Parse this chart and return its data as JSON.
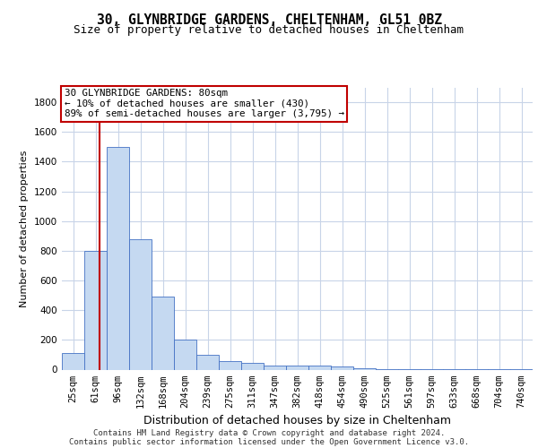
{
  "title1": "30, GLYNBRIDGE GARDENS, CHELTENHAM, GL51 0BZ",
  "title2": "Size of property relative to detached houses in Cheltenham",
  "xlabel": "Distribution of detached houses by size in Cheltenham",
  "ylabel": "Number of detached properties",
  "categories": [
    "25sqm",
    "61sqm",
    "96sqm",
    "132sqm",
    "168sqm",
    "204sqm",
    "239sqm",
    "275sqm",
    "311sqm",
    "347sqm",
    "382sqm",
    "418sqm",
    "454sqm",
    "490sqm",
    "525sqm",
    "561sqm",
    "597sqm",
    "633sqm",
    "668sqm",
    "704sqm",
    "740sqm"
  ],
  "values": [
    110,
    800,
    1500,
    880,
    490,
    205,
    100,
    60,
    45,
    30,
    25,
    25,
    20,
    10,
    5,
    5,
    3,
    2,
    2,
    2,
    2
  ],
  "bar_color": "#c5d9f1",
  "bar_edge_color": "#4472c4",
  "vline_x": 1.18,
  "vline_color": "#c00000",
  "annotation_line1": "30 GLYNBRIDGE GARDENS: 80sqm",
  "annotation_line2": "← 10% of detached houses are smaller (430)",
  "annotation_line3": "89% of semi-detached houses are larger (3,795) →",
  "annotation_box_color": "#c00000",
  "ylim": [
    0,
    1900
  ],
  "yticks": [
    0,
    200,
    400,
    600,
    800,
    1000,
    1200,
    1400,
    1600,
    1800
  ],
  "footer_line1": "Contains HM Land Registry data © Crown copyright and database right 2024.",
  "footer_line2": "Contains public sector information licensed under the Open Government Licence v3.0.",
  "background_color": "#ffffff",
  "grid_color": "#c8d4e8",
  "title1_fontsize": 10.5,
  "title2_fontsize": 9,
  "ylabel_fontsize": 8,
  "xlabel_fontsize": 9,
  "tick_fontsize": 7.5,
  "footer_fontsize": 6.5,
  "annot_fontsize": 7.8
}
